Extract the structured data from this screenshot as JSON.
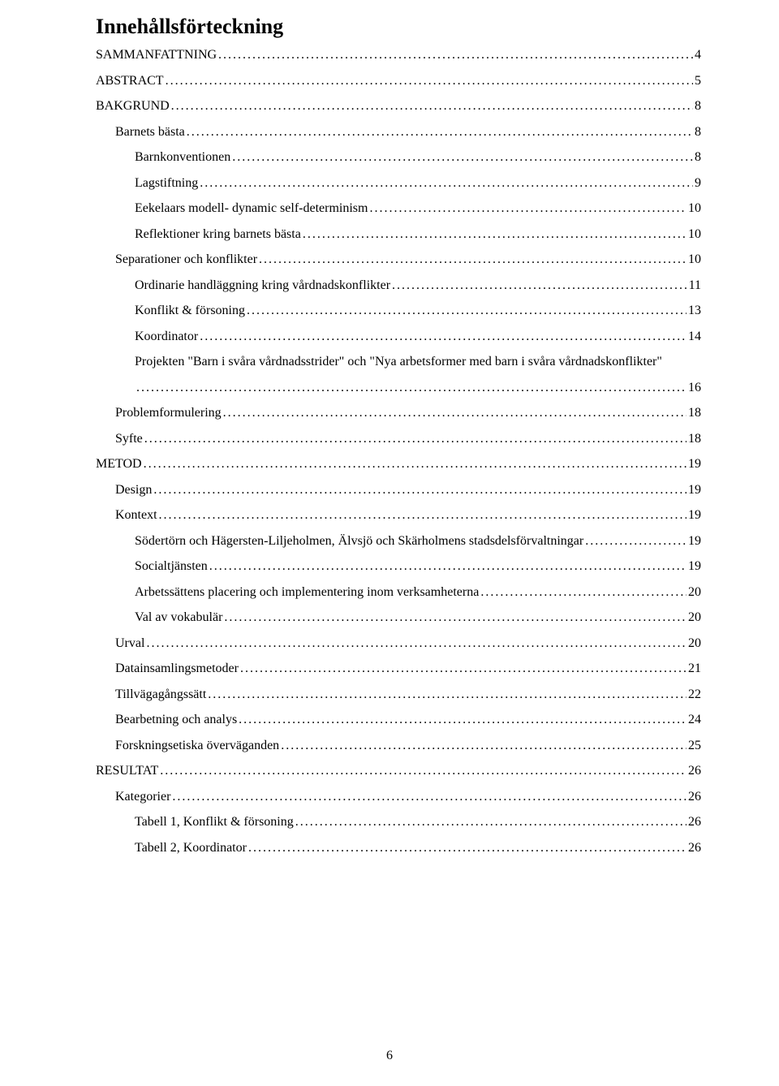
{
  "title": "Innehållsförteckning",
  "page_number": "6",
  "colors": {
    "text": "#000000",
    "background": "#ffffff"
  },
  "typography": {
    "title_fontsize_pt": 19,
    "body_fontsize_pt": 12,
    "font_family": "Times New Roman"
  },
  "toc": [
    {
      "label": "SAMMANFATTNING",
      "page": "4",
      "level": 0
    },
    {
      "label": "ABSTRACT",
      "page": "5",
      "level": 0
    },
    {
      "label": "BAKGRUND",
      "page": "8",
      "level": 0
    },
    {
      "label": "Barnets bästa",
      "page": "8",
      "level": 1
    },
    {
      "label": "Barnkonventionen",
      "page": "8",
      "level": 2
    },
    {
      "label": "Lagstiftning",
      "page": "9",
      "level": 2
    },
    {
      "label": "Eekelaars modell- dynamic self-determinism",
      "page": "10",
      "level": 2
    },
    {
      "label": "Reflektioner kring barnets bästa",
      "page": "10",
      "level": 2
    },
    {
      "label": "Separationer och konflikter",
      "page": "10",
      "level": 1
    },
    {
      "label": "Ordinarie handläggning kring vårdnadskonflikter",
      "page": "11",
      "level": 2
    },
    {
      "label": "Konflikt & försoning",
      "page": "13",
      "level": 2
    },
    {
      "label": "Koordinator",
      "page": "14",
      "level": 2
    },
    {
      "label": "Projekten \"Barn i svåra vårdnadsstrider\" och \"Nya arbetsformer med barn i svåra vårdnadskonflikter\"",
      "page": "16",
      "level": 2,
      "wrap": true
    },
    {
      "label": "Problemformulering",
      "page": "18",
      "level": 1
    },
    {
      "label": "Syfte",
      "page": "18",
      "level": 1
    },
    {
      "label": "METOD",
      "page": "19",
      "level": 0
    },
    {
      "label": "Design",
      "page": "19",
      "level": 1
    },
    {
      "label": "Kontext",
      "page": "19",
      "level": 1
    },
    {
      "label": "Södertörn och Hägersten-Liljeholmen, Älvsjö och Skärholmens stadsdelsförvaltningar",
      "page": "19",
      "level": 2
    },
    {
      "label": "Socialtjänsten",
      "page": "19",
      "level": 2
    },
    {
      "label": "Arbetssättens placering och implementering inom verksamheterna",
      "page": "20",
      "level": 2
    },
    {
      "label": "Val av vokabulär",
      "page": "20",
      "level": 2
    },
    {
      "label": "Urval",
      "page": "20",
      "level": 1
    },
    {
      "label": "Datainsamlingsmetoder",
      "page": "21",
      "level": 1
    },
    {
      "label": "Tillvägagångssätt",
      "page": "22",
      "level": 1
    },
    {
      "label": "Bearbetning och analys",
      "page": "24",
      "level": 1
    },
    {
      "label": "Forskningsetiska överväganden",
      "page": "25",
      "level": 1
    },
    {
      "label": "RESULTAT",
      "page": "26",
      "level": 0
    },
    {
      "label": "Kategorier",
      "page": "26",
      "level": 1
    },
    {
      "label": "Tabell 1, Konflikt & försoning",
      "page": "26",
      "level": 2
    },
    {
      "label": "Tabell 2, Koordinator",
      "page": "26",
      "level": 2
    }
  ]
}
